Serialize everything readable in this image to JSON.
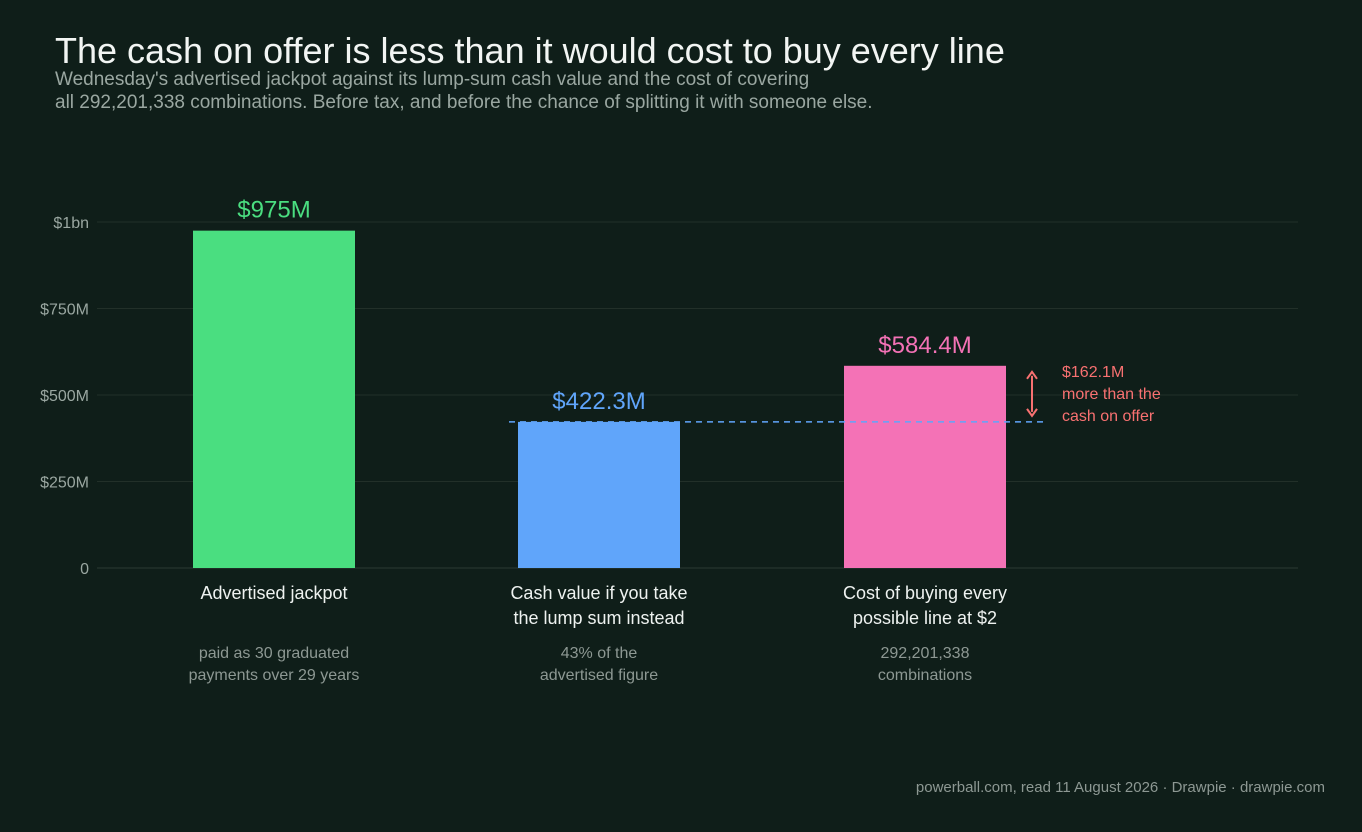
{
  "header": {
    "title": "The cash on offer is less than it would cost to buy every line",
    "subtitle_line1": "Wednesday's advertised jackpot against its lump-sum cash value and the cost of covering",
    "subtitle_line2": "all 292,201,338 combinations. Before tax, and before the chance of splitting it with someone else."
  },
  "footer": {
    "source": "powerball.com, read 11 August 2026  ·  Drawpie · drawpie.com"
  },
  "chart_data": {
    "type": "bar",
    "categories": [
      "Advertised jackpot",
      "Cash value if you take the lump sum instead",
      "Cost of buying every possible line at $2"
    ],
    "category_lines": [
      [
        "Advertised jackpot"
      ],
      [
        "Cash value if you take",
        "the lump sum instead"
      ],
      [
        "Cost of buying every",
        "possible line at $2"
      ]
    ],
    "notes": [
      [
        "paid as 30 graduated",
        "payments over 29 years"
      ],
      [
        "43% of the",
        "advertised figure"
      ],
      [
        "292,201,338",
        "combinations"
      ]
    ],
    "values": [
      975,
      422.3,
      584.4
    ],
    "value_labels": [
      "$975M",
      "$422.3M",
      "$584.4M"
    ],
    "unit": "$M",
    "colors": [
      "#4ade80",
      "#60a5fa",
      "#f472b6"
    ],
    "ylim": [
      0,
      1000
    ],
    "yticks": [
      {
        "value": 0,
        "label": "0"
      },
      {
        "value": 250,
        "label": "$250M"
      },
      {
        "value": 500,
        "label": "$500M"
      },
      {
        "value": 750,
        "label": "$750M"
      },
      {
        "value": 1000,
        "label": "$1bn"
      }
    ],
    "grid": true,
    "reference_line": {
      "value": 422.3,
      "color": "#60a5fa",
      "style": "dashed"
    },
    "annotation": {
      "lines": [
        "$162.1M",
        "more than the",
        "cash on offer"
      ],
      "from": 422.3,
      "to": 584.4,
      "color": "#f87171"
    }
  }
}
